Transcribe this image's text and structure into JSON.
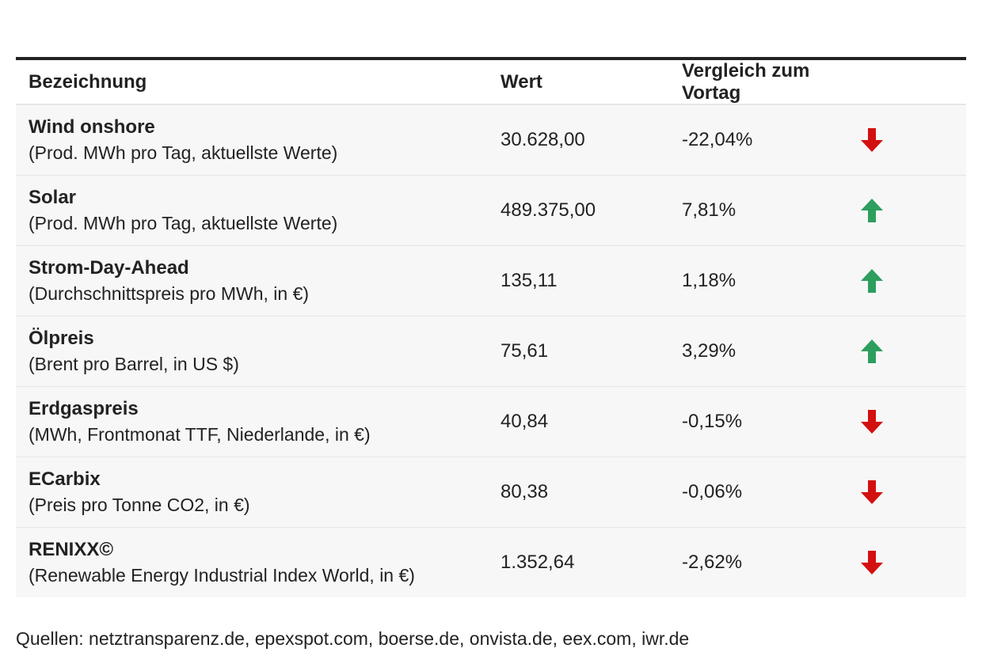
{
  "table": {
    "headers": {
      "name": "Bezeichnung",
      "value": "Wert",
      "change": "Vergleich zum Vortag"
    },
    "rows": [
      {
        "title": "Wind onshore",
        "subtitle": "(Prod. MWh pro Tag, aktuellste Werte)",
        "value": "30.628,00",
        "change": "-22,04%",
        "direction": "down"
      },
      {
        "title": "Solar",
        "subtitle": "(Prod. MWh pro Tag, aktuellste Werte)",
        "value": "489.375,00",
        "change": "7,81%",
        "direction": "up"
      },
      {
        "title": "Strom-Day-Ahead",
        "subtitle": "(Durchschnittspreis pro MWh, in €)",
        "value": "135,11",
        "change": "1,18%",
        "direction": "up"
      },
      {
        "title": "Ölpreis",
        "subtitle": "(Brent pro Barrel, in US $)",
        "value": "75,61",
        "change": "3,29%",
        "direction": "up"
      },
      {
        "title": "Erdgaspreis",
        "subtitle": "(MWh, Frontmonat TTF, Niederlande, in €)",
        "value": "40,84",
        "change": "-0,15%",
        "direction": "down"
      },
      {
        "title": "ECarbix",
        "subtitle": "(Preis pro Tonne CO2, in €)",
        "value": "80,38",
        "change": "-0,06%",
        "direction": "down"
      },
      {
        "title": "RENIXX©",
        "subtitle": "(Renewable Energy Industrial Index World, in €)",
        "value": "1.352,64",
        "change": "-2,62%",
        "direction": "down"
      }
    ]
  },
  "colors": {
    "up": "#2e9e5e",
    "down": "#d31010"
  },
  "icons": {
    "up": "arrow-up-icon",
    "down": "arrow-down-icon"
  },
  "source": "Quellen: netztransparenz.de, epexspot.com, boerse.de, onvista.de, eex.com, iwr.de"
}
